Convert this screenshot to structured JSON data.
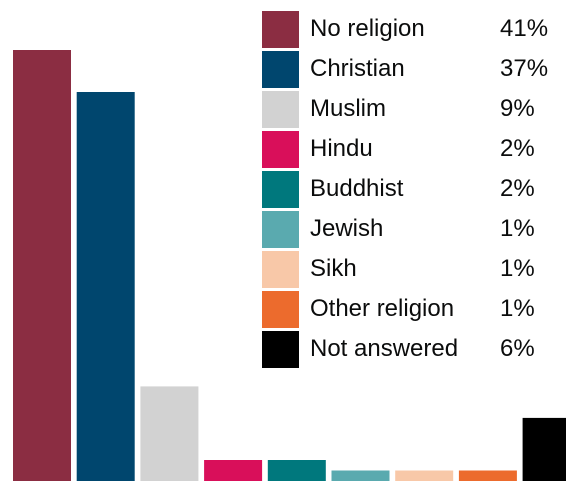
{
  "chart_data": {
    "type": "bar",
    "title": "",
    "xlabel": "",
    "ylabel": "",
    "ylim": [
      0,
      41
    ],
    "grid": false,
    "legend_position": "top-right",
    "categories": [
      "No religion",
      "Christian",
      "Muslim",
      "Hindu",
      "Buddhist",
      "Jewish",
      "Sikh",
      "Other religion",
      "Not answered"
    ],
    "values": [
      41,
      37,
      9,
      2,
      2,
      1,
      1,
      1,
      6
    ],
    "value_labels": [
      "41%",
      "37%",
      "9%",
      "2%",
      "2%",
      "1%",
      "1%",
      "1%",
      "6%"
    ],
    "colors": [
      "#8b2d42",
      "#00466e",
      "#d2d2d2",
      "#d90f5a",
      "#00787d",
      "#5aaaaf",
      "#f8c8a8",
      "#ec6b2d",
      "#000000"
    ]
  }
}
